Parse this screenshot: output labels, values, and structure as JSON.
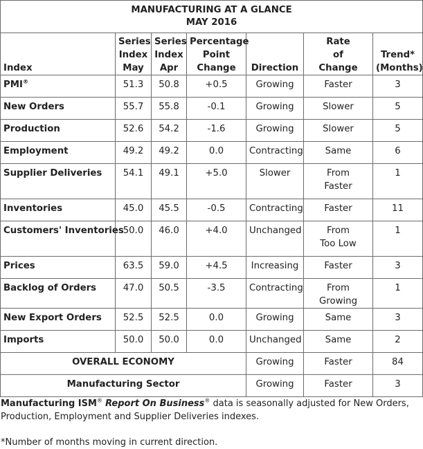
{
  "title": {
    "line1": "MANUFACTURING AT A GLANCE",
    "line2": "MAY 2016"
  },
  "headers": {
    "index": "Index",
    "series_may": [
      "Series",
      "Index",
      "May"
    ],
    "series_apr": [
      "Series",
      "Index",
      "Apr"
    ],
    "pp_change": [
      "Percentage",
      "Point",
      "Change"
    ],
    "direction": "Direction",
    "rate": [
      "Rate",
      "of",
      "Change"
    ],
    "trend": [
      "Trend*",
      "(Months)"
    ]
  },
  "rows": [
    {
      "name": "PMI",
      "sup": "®",
      "may": "51.3",
      "apr": "50.8",
      "change": "+0.5",
      "direction": "Growing",
      "rate": [
        "Faster"
      ],
      "trend": "3"
    },
    {
      "name": "New Orders",
      "sup": "",
      "may": "55.7",
      "apr": "55.8",
      "change": "-0.1",
      "direction": "Growing",
      "rate": [
        "Slower"
      ],
      "trend": "5"
    },
    {
      "name": "Production",
      "sup": "",
      "may": "52.6",
      "apr": "54.2",
      "change": "-1.6",
      "direction": "Growing",
      "rate": [
        "Slower"
      ],
      "trend": "5"
    },
    {
      "name": "Employment",
      "sup": "",
      "may": "49.2",
      "apr": "49.2",
      "change": "0.0",
      "direction": "Contracting",
      "rate": [
        "Same"
      ],
      "trend": "6"
    },
    {
      "name": "Supplier Deliveries",
      "sup": "",
      "may": "54.1",
      "apr": "49.1",
      "change": "+5.0",
      "direction": "Slower",
      "rate": [
        "From",
        "Faster"
      ],
      "trend": "1"
    },
    {
      "name": "Inventories",
      "sup": "",
      "may": "45.0",
      "apr": "45.5",
      "change": "-0.5",
      "direction": "Contracting",
      "rate": [
        "Faster"
      ],
      "trend": "11"
    },
    {
      "name": "Customers' Inventories",
      "sup": "",
      "may": "50.0",
      "apr": "46.0",
      "change": "+4.0",
      "direction": "Unchanged",
      "rate": [
        "From",
        "Too Low"
      ],
      "trend": "1"
    },
    {
      "name": "Prices",
      "sup": "",
      "may": "63.5",
      "apr": "59.0",
      "change": "+4.5",
      "direction": "Increasing",
      "rate": [
        "Faster"
      ],
      "trend": "3"
    },
    {
      "name": "Backlog of Orders",
      "sup": "",
      "may": "47.0",
      "apr": "50.5",
      "change": "-3.5",
      "direction": "Contracting",
      "rate": [
        "From Growing"
      ],
      "trend": "1"
    },
    {
      "name": "New Export Orders",
      "sup": "",
      "may": "52.5",
      "apr": "52.5",
      "change": "0.0",
      "direction": "Growing",
      "rate": [
        "Same"
      ],
      "trend": "3"
    },
    {
      "name": "Imports",
      "sup": "",
      "may": "50.0",
      "apr": "50.0",
      "change": "0.0",
      "direction": "Unchanged",
      "rate": [
        "Same"
      ],
      "trend": "2"
    }
  ],
  "summary_rows": [
    {
      "name": "OVERALL ECONOMY",
      "direction": "Growing",
      "rate": "Faster",
      "trend": "84"
    },
    {
      "name": "Manufacturing Sector",
      "direction": "Growing",
      "rate": "Faster",
      "trend": "3"
    }
  ],
  "note": {
    "brand": "Manufacturing ISM",
    "brand_sup": "®",
    "report": "Report On Business",
    "report_sup": "®",
    "text": " data is seasonally adjusted for New Orders, Production, Employment and Supplier Deliveries indexes."
  },
  "footnote": "*Number of months moving in current direction."
}
